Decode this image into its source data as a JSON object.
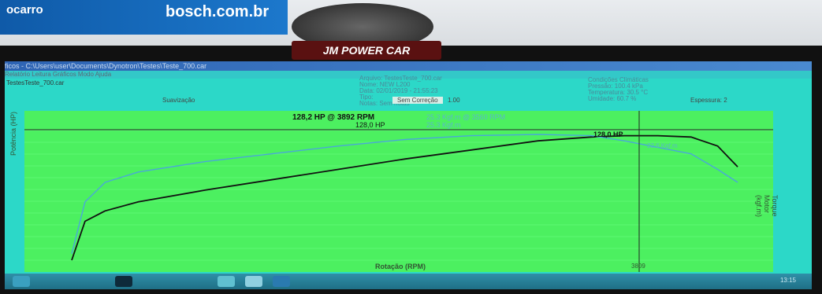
{
  "photo": {
    "banner_left": "ocarro",
    "banner_right": "bosch.com.br",
    "logo": "JM POWER CAR"
  },
  "app": {
    "title": "ficos - C:\\Users\\user\\Documents\\Dynotron\\Testes\\Teste_700.car",
    "menu": "Relatório  Leitura  Gráficos  Modo  Ajuda",
    "doc_name": "TestesTeste_700.car",
    "suavizacao": "Suavização",
    "correcao": "Sem Correção",
    "correcao_value": "1.00",
    "espessura": "Espessura: 2",
    "file_info": {
      "arquivo": "Arquivo: TestesTeste_700.car",
      "nome": "Nome:   NEW L200",
      "data": "Data:   02/01/2019 - 21:55:23",
      "tipo": "Tipo:",
      "notas": "Notas:   Sem notas"
    },
    "conditions": {
      "title": "Condições Climáticas",
      "pressao": "Pressão:   100.4  kPa",
      "temperatura": "Temperatura:  30.5  °C",
      "umidade": "Umidade:   60.7  %"
    }
  },
  "chart": {
    "peak_label": "128,2 HP @ 3892 RPM",
    "legend_hp": "128,0 HP",
    "legend_torque_a": "25.3 Kgf.m @ 3560 RPM",
    "legend_torque_b": "25.3 Kgf.m",
    "cursor_label": "128,0 HP",
    "torque_label": "22.6 Kgf.m",
    "ylabel": "Potência (HP)",
    "ylabel_right": "Torque Motor (kgf.m)",
    "xlabel": "Rotação (RPM)",
    "cursor_x": "3809",
    "colors": {
      "power": "#111111",
      "torque": "#4aa8d8",
      "plot_bg": "#4cf060"
    }
  },
  "chart_data": {
    "type": "line",
    "xlabel": "Rotação (RPM)",
    "ylabel": "Potência (HP)",
    "xlim": [
      0,
      1
    ],
    "ylim": [
      0,
      1
    ],
    "series": [
      {
        "name": "128,0 HP",
        "x": [
          0.0,
          0.02,
          0.05,
          0.1,
          0.2,
          0.3,
          0.4,
          0.5,
          0.6,
          0.7,
          0.78,
          0.83,
          0.88,
          0.93,
          0.97,
          1.0
        ],
        "y": [
          0.0,
          0.3,
          0.38,
          0.45,
          0.54,
          0.62,
          0.7,
          0.78,
          0.85,
          0.92,
          0.95,
          0.96,
          0.96,
          0.95,
          0.88,
          0.72
        ]
      },
      {
        "name": "25.3 Kgf.m",
        "x": [
          0.0,
          0.02,
          0.05,
          0.1,
          0.2,
          0.3,
          0.4,
          0.5,
          0.6,
          0.7,
          0.78,
          0.83,
          0.88,
          0.93,
          0.97,
          1.0
        ],
        "y": [
          0.05,
          0.45,
          0.6,
          0.68,
          0.76,
          0.82,
          0.88,
          0.93,
          0.96,
          0.97,
          0.96,
          0.92,
          0.87,
          0.82,
          0.7,
          0.6
        ]
      }
    ]
  },
  "taskbar": {
    "clock": "13:15"
  }
}
